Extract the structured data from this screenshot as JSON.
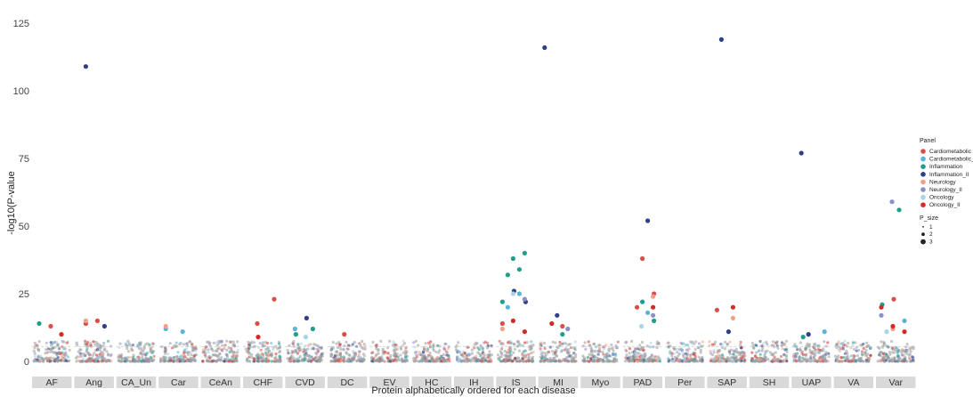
{
  "chart_data": {
    "type": "scatter",
    "xlabel": "Protein alphabetically ordered for each disease",
    "ylabel": "-log10(P-value",
    "ylim": [
      0,
      128
    ],
    "yticks": [
      0,
      25,
      50,
      75,
      100,
      125
    ],
    "grid": false,
    "legend_position": "right",
    "diseases": [
      "AF",
      "Ang",
      "CA_Un",
      "Car",
      "CeAn",
      "CHF",
      "CVD",
      "DC",
      "EV",
      "HC",
      "IH",
      "IS",
      "MI",
      "Myo",
      "PAD",
      "Per",
      "SAP",
      "SH",
      "UAP",
      "VA",
      "Var"
    ],
    "panel_legend": {
      "title": "Panel",
      "items": [
        {
          "label": "Cardiometabolic",
          "color": "#d94f45"
        },
        {
          "label": "Cardiometabolic_I",
          "color": "#5ab4d6"
        },
        {
          "label": "Inflammation",
          "color": "#1f9e89"
        },
        {
          "label": "Inflammation_II",
          "color": "#2f3f8a"
        },
        {
          "label": "Neurology",
          "color": "#f2a08a"
        },
        {
          "label": "Neurology_II",
          "color": "#8a8fc6"
        },
        {
          "label": "Oncology",
          "color": "#a9d4e8"
        },
        {
          "label": "Oncology_II",
          "color": "#d42a2a"
        }
      ]
    },
    "size_legend": {
      "title": "P_size",
      "items": [
        "1",
        "2",
        "3"
      ]
    },
    "series": [
      {
        "name": "Cardiometabolic",
        "points": [
          {
            "disease": "Ang",
            "y": 14
          },
          {
            "disease": "Ang",
            "y": 15
          },
          {
            "disease": "CHF",
            "y": 23
          },
          {
            "disease": "CHF",
            "y": 14
          },
          {
            "disease": "IS",
            "y": 14
          },
          {
            "disease": "MI",
            "y": 13
          },
          {
            "disease": "PAD",
            "y": 38
          },
          {
            "disease": "PAD",
            "y": 25
          },
          {
            "disease": "PAD",
            "y": 20
          },
          {
            "disease": "SAP",
            "y": 19
          },
          {
            "disease": "Var",
            "y": 23
          },
          {
            "disease": "AF",
            "y": 13
          },
          {
            "disease": "DC",
            "y": 10
          }
        ]
      },
      {
        "name": "Cardiometabolic_I",
        "points": [
          {
            "disease": "Car",
            "y": 11
          },
          {
            "disease": "Car",
            "y": 12
          },
          {
            "disease": "IS",
            "y": 20
          },
          {
            "disease": "IS",
            "y": 25
          },
          {
            "disease": "PAD",
            "y": 18
          },
          {
            "disease": "UAP",
            "y": 11
          },
          {
            "disease": "Var",
            "y": 15
          },
          {
            "disease": "CVD",
            "y": 12
          }
        ]
      },
      {
        "name": "Inflammation",
        "points": [
          {
            "disease": "IS",
            "y": 38
          },
          {
            "disease": "IS",
            "y": 40
          },
          {
            "disease": "IS",
            "y": 32
          },
          {
            "disease": "IS",
            "y": 34
          },
          {
            "disease": "IS",
            "y": 22
          },
          {
            "disease": "MI",
            "y": 10
          },
          {
            "disease": "PAD",
            "y": 22
          },
          {
            "disease": "PAD",
            "y": 15
          },
          {
            "disease": "Var",
            "y": 56
          },
          {
            "disease": "Var",
            "y": 21
          },
          {
            "disease": "AF",
            "y": 14
          },
          {
            "disease": "CVD",
            "y": 12
          },
          {
            "disease": "CVD",
            "y": 10
          },
          {
            "disease": "UAP",
            "y": 9
          }
        ]
      },
      {
        "name": "Inflammation_II",
        "points": [
          {
            "disease": "Ang",
            "y": 109
          },
          {
            "disease": "MI",
            "y": 116
          },
          {
            "disease": "SAP",
            "y": 119
          },
          {
            "disease": "UAP",
            "y": 77
          },
          {
            "disease": "PAD",
            "y": 52
          },
          {
            "disease": "IS",
            "y": 26
          },
          {
            "disease": "IS",
            "y": 22
          },
          {
            "disease": "MI",
            "y": 17
          },
          {
            "disease": "CVD",
            "y": 16
          },
          {
            "disease": "Ang",
            "y": 13
          },
          {
            "disease": "SAP",
            "y": 11
          },
          {
            "disease": "UAP",
            "y": 10
          }
        ]
      },
      {
        "name": "Neurology",
        "points": [
          {
            "disease": "Ang",
            "y": 15
          },
          {
            "disease": "Car",
            "y": 13
          },
          {
            "disease": "PAD",
            "y": 24
          },
          {
            "disease": "SAP",
            "y": 16
          },
          {
            "disease": "IS",
            "y": 12
          },
          {
            "disease": "Var",
            "y": 12
          }
        ]
      },
      {
        "name": "Neurology_II",
        "points": [
          {
            "disease": "Var",
            "y": 59
          },
          {
            "disease": "IS",
            "y": 23
          },
          {
            "disease": "PAD",
            "y": 17
          },
          {
            "disease": "MI",
            "y": 12
          },
          {
            "disease": "Var",
            "y": 17
          }
        ]
      },
      {
        "name": "Oncology",
        "points": [
          {
            "disease": "IS",
            "y": 25
          },
          {
            "disease": "PAD",
            "y": 13
          },
          {
            "disease": "Var",
            "y": 11
          },
          {
            "disease": "CVD",
            "y": 9
          }
        ]
      },
      {
        "name": "Oncology_II",
        "points": [
          {
            "disease": "IS",
            "y": 15
          },
          {
            "disease": "IS",
            "y": 11
          },
          {
            "disease": "PAD",
            "y": 20
          },
          {
            "disease": "SAP",
            "y": 20
          },
          {
            "disease": "Var",
            "y": 20
          },
          {
            "disease": "Var",
            "y": 13
          },
          {
            "disease": "Var",
            "y": 11
          },
          {
            "disease": "AF",
            "y": 10
          },
          {
            "disease": "CHF",
            "y": 9
          },
          {
            "disease": "MI",
            "y": 14
          }
        ]
      }
    ]
  }
}
